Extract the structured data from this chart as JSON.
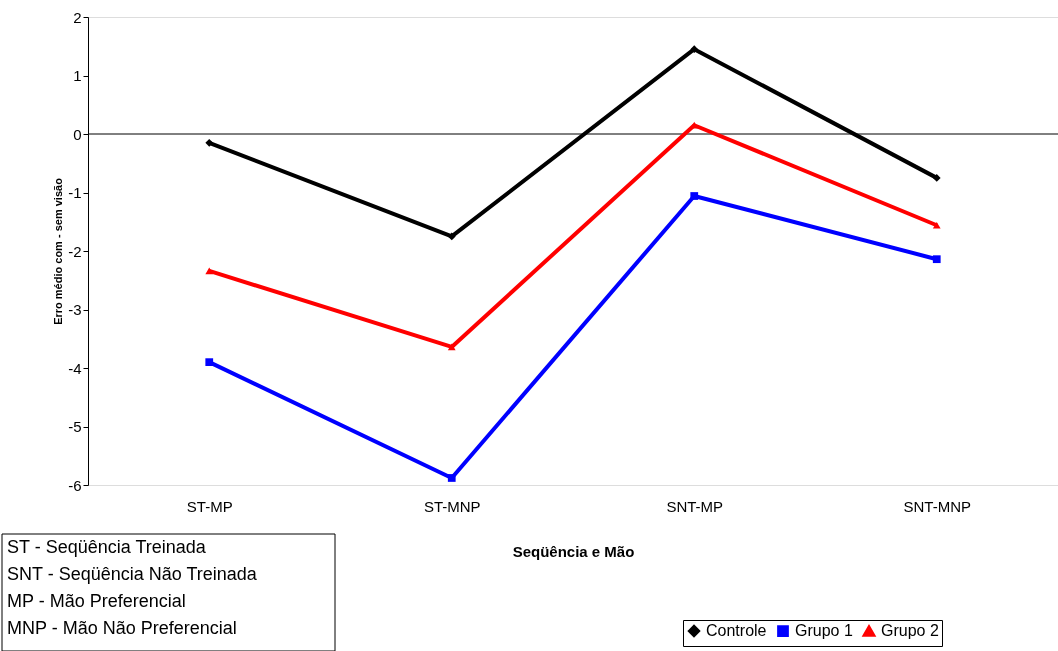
{
  "chart_data": {
    "type": "line",
    "xlabel": "Seqüência e Mão",
    "ylabel": "Erro médio com - sem visão",
    "categories": [
      "ST-MP",
      "ST-MNP",
      "SNT-MP",
      "SNT-MNP"
    ],
    "series": [
      {
        "name": "Controle",
        "color": "#000000",
        "marker": "diamond",
        "values": [
          -0.15,
          -1.75,
          1.45,
          -0.75
        ]
      },
      {
        "name": "Grupo 1",
        "color": "#0000ff",
        "marker": "square",
        "values": [
          -3.9,
          -5.88,
          -1.06,
          -2.14
        ]
      },
      {
        "name": "Grupo 2",
        "color": "#ff0000",
        "marker": "triangle",
        "values": [
          -2.34,
          -3.64,
          0.15,
          -1.56
        ]
      }
    ],
    "ylim": [
      -6,
      2
    ],
    "yticks": [
      -6,
      -5,
      -4,
      -3,
      -2,
      -1,
      0,
      1,
      2
    ],
    "ref_lines": [
      {
        "axis": "y",
        "value": 0,
        "color": "#000000"
      }
    ],
    "grid": false,
    "legend": "bottom right",
    "line_style": "solid",
    "annotations": [
      "ST - Seqüência Treinada",
      "SNT - Seqüência Não Treinada",
      "MP - Mão Preferencial",
      "MNP - Mão Não Preferencial"
    ]
  }
}
